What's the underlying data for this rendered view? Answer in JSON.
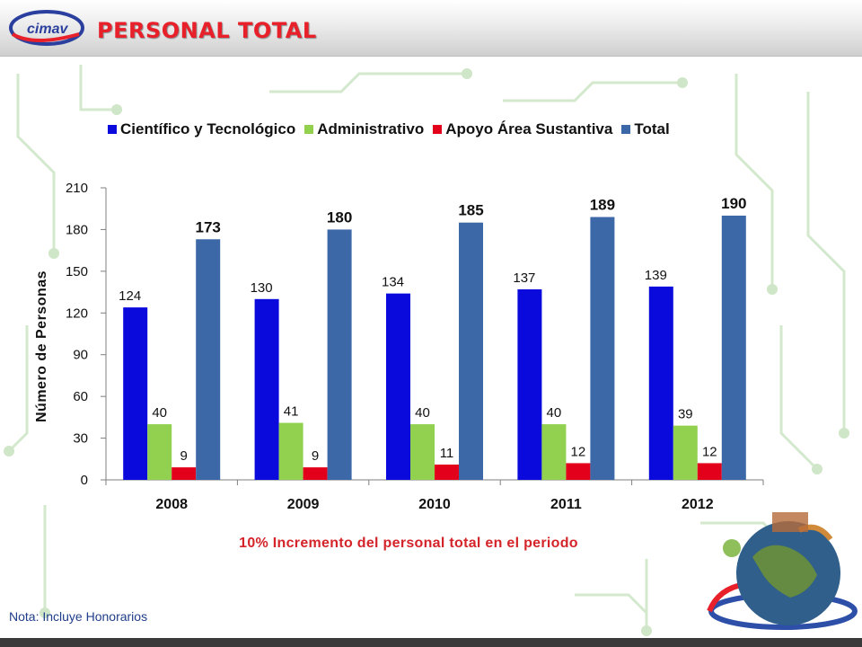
{
  "header": {
    "title": "PERSONAL TOTAL",
    "logo_text": "cimav"
  },
  "chart_data": {
    "type": "bar",
    "categories": [
      "2008",
      "2009",
      "2010",
      "2011",
      "2012"
    ],
    "series": [
      {
        "name": "Científico y Tecnológico",
        "values": [
          124,
          130,
          134,
          137,
          139
        ],
        "color": "#0a0adc"
      },
      {
        "name": "Administrativo",
        "values": [
          40,
          41,
          40,
          40,
          39
        ],
        "color": "#92d050"
      },
      {
        "name": "Apoyo Área Sustantiva",
        "values": [
          9,
          9,
          11,
          12,
          12
        ],
        "color": "#e3001b"
      },
      {
        "name": "Total",
        "values": [
          173,
          180,
          185,
          189,
          190
        ],
        "color": "#3d68a8"
      }
    ],
    "ylabel": "Número de Personas",
    "xlabel": "",
    "ylim": [
      0,
      210
    ],
    "yticks": [
      "0",
      "30",
      "60",
      "90",
      "120",
      "150",
      "180",
      "210"
    ],
    "legend_position": "top",
    "grid": false,
    "annotation": "10% Incremento  del personal total en el periodo"
  },
  "footer": {
    "note": "Nota:  Incluye Honorarios"
  }
}
